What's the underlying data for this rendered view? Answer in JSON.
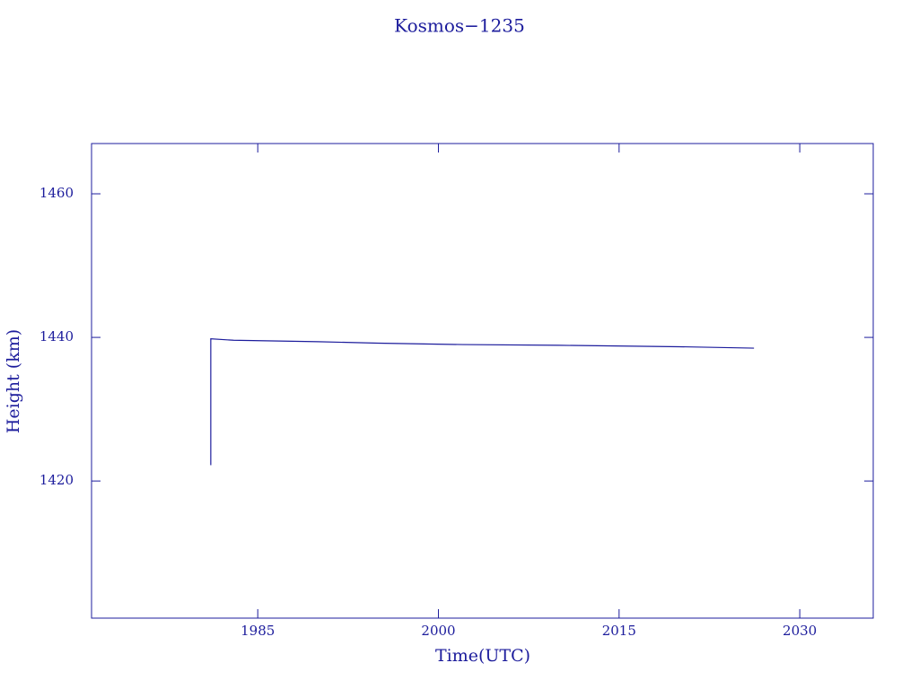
{
  "chart_data": {
    "type": "line",
    "title": "Kosmos−1235",
    "x_label": "Time(UTC)",
    "y_label": "Height (km)",
    "color": "#1c1c9c",
    "x": [
      1981.1,
      1981.1,
      1983,
      1990,
      1995,
      2002,
      2010,
      2020,
      2026.2
    ],
    "values": [
      1422.2,
      1439.8,
      1439.6,
      1439.4,
      1439.2,
      1439.0,
      1438.9,
      1438.7,
      1438.5
    ],
    "xlim": [
      1971.2,
      2036.1
    ],
    "xticks": [
      1985,
      2000,
      2015,
      2030
    ],
    "ylim": [
      1400.9,
      1467
    ],
    "yticks": [
      1420,
      1440,
      1460
    ]
  }
}
